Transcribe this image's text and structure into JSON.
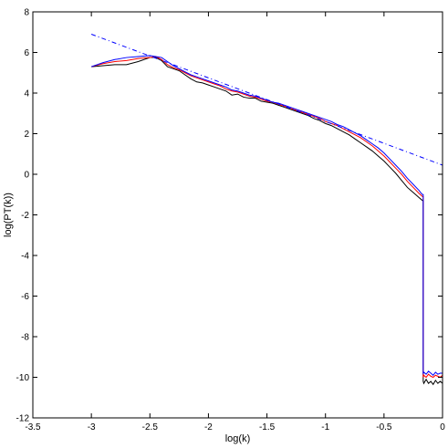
{
  "chart_data": {
    "type": "line",
    "title": "",
    "xlabel": "log(k)",
    "ylabel": "log(PT(k))",
    "xlim": [
      -3.5,
      0
    ],
    "ylim": [
      -12,
      8
    ],
    "xticks": [
      -3.5,
      -3,
      -2.5,
      -2,
      -1.5,
      -1,
      -0.5,
      0
    ],
    "yticks": [
      -12,
      -10,
      -8,
      -6,
      -4,
      -2,
      0,
      2,
      4,
      6,
      8
    ],
    "xtick_labels": [
      "-3.5",
      "-3",
      "-2.5",
      "-2",
      "-1.5",
      "-1",
      "-0.5",
      "0"
    ],
    "ytick_labels": [
      "-12",
      "-10",
      "-8",
      "-6",
      "-4",
      "-2",
      "0",
      "2",
      "4",
      "6",
      "8"
    ],
    "grid": false,
    "legend": "none",
    "series": [
      {
        "color": "#000000",
        "style": "solid",
        "x": [
          -3.0,
          -2.9,
          -2.8,
          -2.7,
          -2.6,
          -2.5,
          -2.45,
          -2.4,
          -2.35,
          -2.3,
          -2.25,
          -2.2,
          -2.15,
          -2.1,
          -2.05,
          -2.0,
          -1.95,
          -1.9,
          -1.85,
          -1.8,
          -1.75,
          -1.7,
          -1.65,
          -1.6,
          -1.55,
          -1.5,
          -1.45,
          -1.4,
          -1.35,
          -1.3,
          -1.25,
          -1.2,
          -1.15,
          -1.1,
          -1.05,
          -1.0,
          -0.95,
          -0.9,
          -0.85,
          -0.8,
          -0.75,
          -0.7,
          -0.65,
          -0.6,
          -0.55,
          -0.5,
          -0.45,
          -0.4,
          -0.35,
          -0.3,
          -0.25,
          -0.2,
          -0.18,
          -0.17,
          -0.165,
          -0.165,
          -0.16,
          -0.14,
          -0.12,
          -0.1,
          -0.08,
          -0.06,
          -0.04,
          -0.02,
          0.0
        ],
        "y": [
          5.3,
          5.35,
          5.4,
          5.4,
          5.55,
          5.75,
          5.75,
          5.6,
          5.3,
          5.2,
          5.1,
          4.9,
          4.7,
          4.55,
          4.5,
          4.4,
          4.3,
          4.2,
          4.1,
          3.9,
          3.95,
          3.8,
          3.75,
          3.75,
          3.6,
          3.55,
          3.5,
          3.4,
          3.3,
          3.2,
          3.1,
          3.0,
          2.9,
          2.75,
          2.65,
          2.5,
          2.4,
          2.25,
          2.1,
          1.95,
          1.75,
          1.55,
          1.35,
          1.15,
          0.9,
          0.65,
          0.35,
          0.05,
          -0.3,
          -0.65,
          -0.9,
          -1.15,
          -1.25,
          -1.3,
          -1.3,
          -10.2,
          -10.3,
          -10.1,
          -10.3,
          -10.2,
          -10.35,
          -10.15,
          -10.3,
          -10.2,
          -10.3
        ]
      },
      {
        "color": "#ff0000",
        "style": "solid",
        "x": [
          -3.0,
          -2.9,
          -2.8,
          -2.7,
          -2.6,
          -2.5,
          -2.45,
          -2.4,
          -2.35,
          -2.3,
          -2.25,
          -2.2,
          -2.15,
          -2.1,
          -2.05,
          -2.0,
          -1.95,
          -1.9,
          -1.85,
          -1.8,
          -1.75,
          -1.7,
          -1.65,
          -1.6,
          -1.55,
          -1.5,
          -1.45,
          -1.4,
          -1.35,
          -1.3,
          -1.25,
          -1.2,
          -1.15,
          -1.1,
          -1.05,
          -1.0,
          -0.95,
          -0.9,
          -0.85,
          -0.8,
          -0.75,
          -0.7,
          -0.65,
          -0.6,
          -0.55,
          -0.5,
          -0.45,
          -0.4,
          -0.35,
          -0.3,
          -0.25,
          -0.2,
          -0.18,
          -0.17,
          -0.165,
          -0.165,
          -0.16,
          -0.14,
          -0.12,
          -0.1,
          -0.08,
          -0.06,
          -0.04,
          -0.02,
          0.0
        ],
        "y": [
          5.3,
          5.45,
          5.55,
          5.6,
          5.7,
          5.75,
          5.8,
          5.65,
          5.4,
          5.25,
          5.15,
          5.0,
          4.85,
          4.75,
          4.65,
          4.55,
          4.45,
          4.35,
          4.2,
          4.1,
          4.05,
          3.95,
          3.85,
          3.8,
          3.7,
          3.6,
          3.55,
          3.45,
          3.35,
          3.25,
          3.15,
          3.05,
          2.95,
          2.85,
          2.75,
          2.6,
          2.5,
          2.4,
          2.25,
          2.1,
          1.95,
          1.8,
          1.6,
          1.4,
          1.15,
          0.9,
          0.6,
          0.3,
          0.0,
          -0.35,
          -0.65,
          -0.95,
          -1.05,
          -1.1,
          -1.1,
          -10.0,
          -9.9,
          -10.0,
          -9.85,
          -9.95,
          -10.0,
          -9.9,
          -9.95,
          -10.0,
          -9.9
        ]
      },
      {
        "color": "#0000ff",
        "style": "solid",
        "x": [
          -3.0,
          -2.9,
          -2.8,
          -2.7,
          -2.6,
          -2.5,
          -2.45,
          -2.4,
          -2.35,
          -2.3,
          -2.25,
          -2.2,
          -2.15,
          -2.1,
          -2.05,
          -2.0,
          -1.95,
          -1.9,
          -1.85,
          -1.8,
          -1.75,
          -1.7,
          -1.65,
          -1.6,
          -1.55,
          -1.5,
          -1.45,
          -1.4,
          -1.35,
          -1.3,
          -1.25,
          -1.2,
          -1.15,
          -1.1,
          -1.05,
          -1.0,
          -0.95,
          -0.9,
          -0.85,
          -0.8,
          -0.75,
          -0.7,
          -0.65,
          -0.6,
          -0.55,
          -0.5,
          -0.45,
          -0.4,
          -0.35,
          -0.3,
          -0.25,
          -0.2,
          -0.18,
          -0.17,
          -0.165,
          -0.165,
          -0.16,
          -0.14,
          -0.12,
          -0.1,
          -0.08,
          -0.06,
          -0.04,
          -0.02,
          0.0
        ],
        "y": [
          5.3,
          5.5,
          5.65,
          5.75,
          5.8,
          5.85,
          5.8,
          5.75,
          5.55,
          5.35,
          5.2,
          5.05,
          4.9,
          4.8,
          4.7,
          4.6,
          4.5,
          4.4,
          4.3,
          4.15,
          4.1,
          4.0,
          3.9,
          3.85,
          3.75,
          3.65,
          3.55,
          3.5,
          3.4,
          3.3,
          3.2,
          3.1,
          3.0,
          2.9,
          2.8,
          2.7,
          2.6,
          2.45,
          2.35,
          2.2,
          2.05,
          1.9,
          1.7,
          1.5,
          1.3,
          1.05,
          0.75,
          0.45,
          0.15,
          -0.2,
          -0.5,
          -0.8,
          -0.95,
          -1.0,
          -1.0,
          -9.8,
          -9.75,
          -9.85,
          -9.7,
          -9.8,
          -9.9,
          -9.75,
          -9.85,
          -9.8,
          -9.8
        ]
      },
      {
        "color": "#0000ff",
        "style": "dash-dot",
        "x": [
          -3.0,
          0.0
        ],
        "y": [
          6.9,
          0.45
        ]
      }
    ]
  }
}
